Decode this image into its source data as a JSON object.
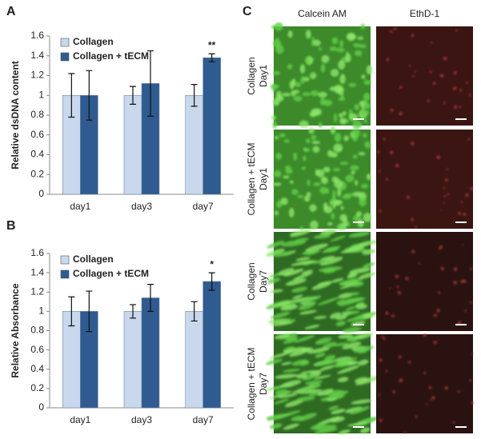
{
  "chart_data": [
    {
      "type": "bar",
      "panel": "A",
      "y_label": "Relative dsDNA content",
      "categories": [
        "day1",
        "day3",
        "day7"
      ],
      "series": [
        {
          "name": "Collagen",
          "color": "#c9d8ec",
          "values": [
            1,
            1,
            1
          ],
          "errors": [
            0.22,
            0.09,
            0.11
          ]
        },
        {
          "name": "Collagen + tECM",
          "color": "#2f5b90",
          "values": [
            1,
            1.12,
            1.38
          ],
          "errors": [
            0.25,
            0.33,
            0.04
          ]
        }
      ],
      "significance": [
        null,
        null,
        "**"
      ],
      "ylim": [
        0,
        1.6
      ],
      "yticks": [
        0,
        0.2,
        0.4,
        0.6,
        0.8,
        1,
        1.2,
        1.4,
        1.6
      ],
      "grid": false,
      "legend": "top-left"
    },
    {
      "type": "bar",
      "panel": "B",
      "y_label": "Relative Absorbance",
      "categories": [
        "day1",
        "day3",
        "day7"
      ],
      "series": [
        {
          "name": "Collagen",
          "color": "#c9d8ec",
          "values": [
            1,
            1,
            1
          ],
          "errors": [
            0.15,
            0.07,
            0.1
          ]
        },
        {
          "name": "Collagen + tECM",
          "color": "#2f5b90",
          "values": [
            1,
            1.14,
            1.31
          ],
          "errors": [
            0.21,
            0.14,
            0.09
          ]
        }
      ],
      "significance": [
        null,
        null,
        "*"
      ],
      "ylim": [
        0,
        1.6
      ],
      "yticks": [
        0,
        0.2,
        0.4,
        0.6,
        0.8,
        1,
        1.2,
        1.4,
        1.6
      ],
      "grid": false,
      "legend": "top-left"
    }
  ],
  "panel_c": {
    "panel": "C",
    "columns": [
      "Calcein AM",
      "EthD-1"
    ],
    "rows": [
      [
        "Collagen",
        "Day1"
      ],
      [
        "Collagen + tECM",
        "Day1"
      ],
      [
        "Collagen",
        "Day7"
      ],
      [
        "Collagen + tECM",
        "Day7"
      ]
    ]
  }
}
